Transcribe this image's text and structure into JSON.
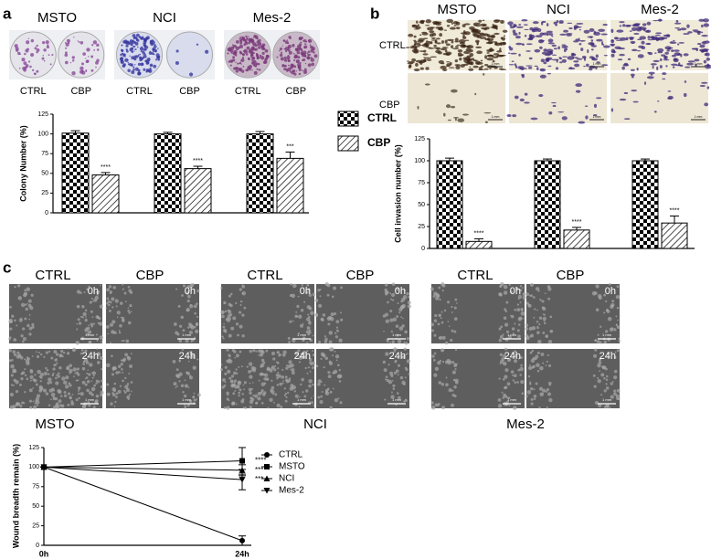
{
  "panel_labels": [
    "a",
    "b",
    "c"
  ],
  "invasion_photos": {
    "scale": "1 mm"
  },
  "wound_photos": {
    "conditions": [
      "CTRL",
      "CBP"
    ],
    "times": [
      "0h",
      "24h"
    ],
    "scale": "1 mm"
  },
  "chart_data": [
    {
      "type": "bar",
      "y_label": "Colony Number (%)",
      "categories": [
        "MSTO",
        "NCI",
        "Mes-2"
      ],
      "ylim": [
        0,
        125
      ],
      "yticks": [
        0,
        25,
        50,
        75,
        100,
        125
      ],
      "legend": "right",
      "series": [
        {
          "name": "CTRL",
          "pattern": "checker",
          "values": [
            101,
            100,
            100
          ],
          "errors": [
            3,
            2,
            3
          ]
        },
        {
          "name": "CBP",
          "pattern": "hatch",
          "values": [
            48,
            56,
            69
          ],
          "errors": [
            3,
            3,
            8
          ],
          "annotations": [
            "****",
            "****",
            "***"
          ]
        }
      ]
    },
    {
      "type": "bar",
      "y_label": "Cell invasion number (%)",
      "categories": [
        "MSTO",
        "NCI",
        "Mes-2"
      ],
      "ylim": [
        0,
        125
      ],
      "yticks": [
        0,
        25,
        50,
        75,
        100,
        125
      ],
      "series": [
        {
          "name": "CTRL",
          "pattern": "checker",
          "values": [
            100,
            100,
            100
          ],
          "errors": [
            3,
            2,
            2
          ]
        },
        {
          "name": "CBP",
          "pattern": "hatch",
          "values": [
            8,
            21,
            29
          ],
          "errors": [
            3,
            3,
            8
          ],
          "annotations": [
            "****",
            "****",
            "****"
          ]
        }
      ]
    },
    {
      "type": "line",
      "y_label": "Wound breadth remain (%)",
      "categories": [
        "0h",
        "24h"
      ],
      "ylim": [
        0,
        125
      ],
      "yticks": [
        0,
        25,
        50,
        75,
        100,
        125
      ],
      "legend": "right",
      "series": [
        {
          "name": "CTRL",
          "marker": "circle",
          "values": [
            100,
            6
          ],
          "errors": [
            0,
            6
          ]
        },
        {
          "name": "MSTO",
          "marker": "square",
          "values": [
            100,
            108
          ],
          "errors": [
            0,
            17
          ],
          "annotation": "****"
        },
        {
          "name": "NCI",
          "marker": "triangle",
          "values": [
            100,
            96
          ],
          "errors": [
            0,
            7
          ],
          "annotation": "***"
        },
        {
          "name": "Mes-2",
          "marker": "triangle-down",
          "values": [
            100,
            84
          ],
          "errors": [
            0,
            13
          ],
          "annotation": "***"
        }
      ]
    }
  ]
}
